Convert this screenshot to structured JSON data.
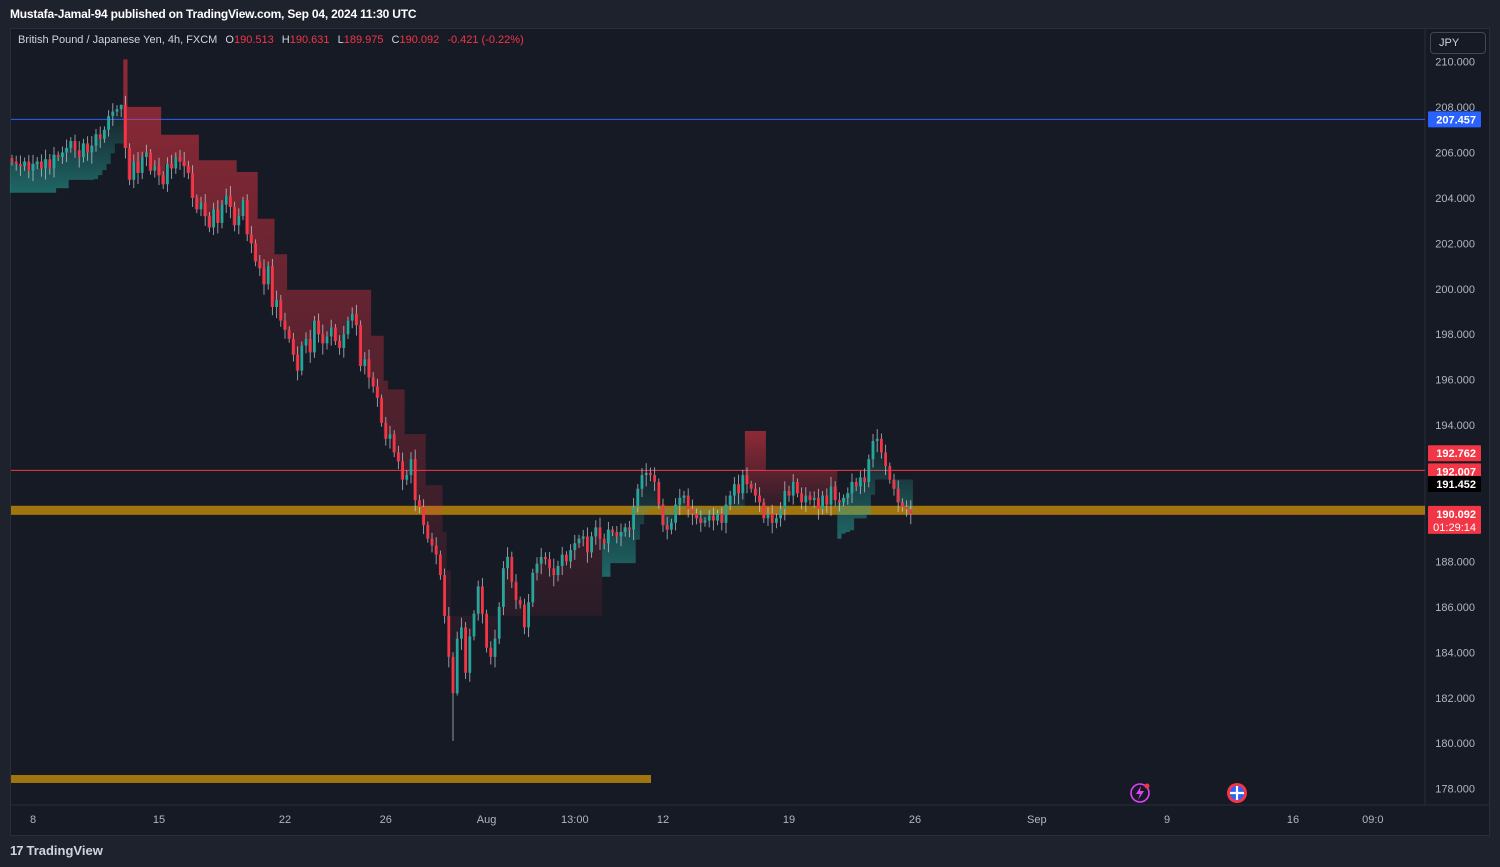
{
  "publisher": "Mustafa-Jamal-94 published on TradingView.com, Sep 04, 2024 11:30 UTC",
  "legend": {
    "symbol": "British Pound / Japanese Yen, 4h, FXCM",
    "open_label": "O",
    "open": "190.513",
    "high_label": "H",
    "high": "190.631",
    "low_label": "L",
    "low": "189.975",
    "close_label": "C",
    "close": "190.092",
    "change": "-0.421 (-0.22%)"
  },
  "currency_button": "JPY",
  "brand": "TradingView",
  "brand_logo": "17",
  "colors": {
    "background": "#161a25",
    "up": "#26a69a",
    "down": "#f23645",
    "blue_line": "#2962ff",
    "red_line": "#f23645",
    "zone": "#b8860b"
  },
  "chart_data": {
    "type": "candlestick",
    "ylim": [
      177.6,
      210.0
    ],
    "y_ticks": [
      "210.000",
      "208.000",
      "206.000",
      "204.000",
      "202.000",
      "200.000",
      "198.000",
      "196.000",
      "194.000",
      "192.000",
      "190.000",
      "188.000",
      "186.000",
      "184.000",
      "182.000",
      "180.000",
      "178.000"
    ],
    "x_ticks": [
      {
        "label": "8",
        "i": 5
      },
      {
        "label": "15",
        "i": 35
      },
      {
        "label": "22",
        "i": 65
      },
      {
        "label": "26",
        "i": 89
      },
      {
        "label": "Aug",
        "i": 113
      },
      {
        "label": "13:00",
        "i": 134
      },
      {
        "label": "12",
        "i": 155
      },
      {
        "label": "19",
        "i": 185
      },
      {
        "label": "26",
        "i": 215
      },
      {
        "label": "Sep",
        "i": 244
      },
      {
        "label": "9",
        "i": 275
      },
      {
        "label": "16",
        "i": 305
      },
      {
        "label": "09:0",
        "i": 324
      }
    ],
    "price_labels": [
      {
        "value": 207.457,
        "text": "207.457",
        "color": "#2962ff"
      },
      {
        "value": 192.762,
        "text": "192.762",
        "color": "#f23645"
      },
      {
        "value": 192.007,
        "text": "192.007",
        "color": "#f23645"
      },
      {
        "value": 191.452,
        "text": "191.452",
        "color": "#000000"
      },
      {
        "value": 190.092,
        "text": "190.092",
        "subtext": "01:29:14",
        "color": "#f23645"
      }
    ],
    "horizontal_lines": [
      {
        "value": 207.457,
        "color": "#2962ff"
      },
      {
        "value": 192.007,
        "color": "#f23645"
      }
    ],
    "zones": [
      {
        "low": 190.05,
        "high": 190.45,
        "from_i": 0,
        "to_i": 330
      },
      {
        "low": 178.25,
        "high": 178.6,
        "from_i": 0,
        "to_i": 151
      }
    ],
    "close_series": [
      205.6,
      205.5,
      205.4,
      205.6,
      205.2,
      205.5,
      205.6,
      205.3,
      205.7,
      205.3,
      205.9,
      205.8,
      206.0,
      206.2,
      206.5,
      206.1,
      205.8,
      206.4,
      206.0,
      206.3,
      206.8,
      206.6,
      207.0,
      207.6,
      207.8,
      207.9,
      208.1,
      206.2,
      204.8,
      205.6,
      205.1,
      205.8,
      206.0,
      205.2,
      205.4,
      205.0,
      204.6,
      205.5,
      205.3,
      205.8,
      205.6,
      205.4,
      205.1,
      204.0,
      203.5,
      203.8,
      203.2,
      202.7,
      203.5,
      202.9,
      203.7,
      204.1,
      203.6,
      202.8,
      203.2,
      203.9,
      202.4,
      202.0,
      201.2,
      200.9,
      200.2,
      201.0,
      199.2,
      199.5,
      198.6,
      198.2,
      197.8,
      197.1,
      196.4,
      197.5,
      197.8,
      197.2,
      198.6,
      198.0,
      197.6,
      197.9,
      198.3,
      197.7,
      197.4,
      198.0,
      198.6,
      198.9,
      198.4,
      196.6,
      196.9,
      196.1,
      195.7,
      195.2,
      194.1,
      193.4,
      193.6,
      192.8,
      192.4,
      191.6,
      191.8,
      192.5,
      190.7,
      190.4,
      189.6,
      189.0,
      188.7,
      188.3,
      187.4,
      185.6,
      183.8,
      182.2,
      184.6,
      185.1,
      183.1,
      184.7,
      185.7,
      186.9,
      185.7,
      184.2,
      183.8,
      184.6,
      186.0,
      187.7,
      188.2,
      187.1,
      186.3,
      186.1,
      185.1,
      186.2,
      187.5,
      187.9,
      188.2,
      188.1,
      187.7,
      187.4,
      187.8,
      188.3,
      188.0,
      188.5,
      188.8,
      189.0,
      189.1,
      188.4,
      189.1,
      189.5,
      189.0,
      188.8,
      189.4,
      189.3,
      189.1,
      189.3,
      189.5,
      189.4,
      190.4,
      191.2,
      191.8,
      191.9,
      191.8,
      191.5,
      190.5,
      189.6,
      189.4,
      189.7,
      190.5,
      190.8,
      190.9,
      190.3,
      190.1,
      189.9,
      189.7,
      189.8,
      190.0,
      189.8,
      190.1,
      189.7,
      190.5,
      190.9,
      191.4,
      191.0,
      191.8,
      191.4,
      191.2,
      190.9,
      190.6,
      189.9,
      190.1,
      189.7,
      189.9,
      190.3,
      191.1,
      190.9,
      191.5,
      191.0,
      190.6,
      190.9,
      190.7,
      190.8,
      190.3,
      190.9,
      190.5,
      191.3,
      190.7,
      190.6,
      190.8,
      191.0,
      191.5,
      191.3,
      191.7,
      191.5,
      192.5,
      193.3,
      193.4,
      192.8,
      192.2,
      191.6,
      191.2,
      190.6,
      190.4,
      190.3,
      190.1
    ],
    "high_extremes": [
      208.1,
      206.4
    ],
    "low_extremes": [
      180.1,
      182.1
    ]
  }
}
